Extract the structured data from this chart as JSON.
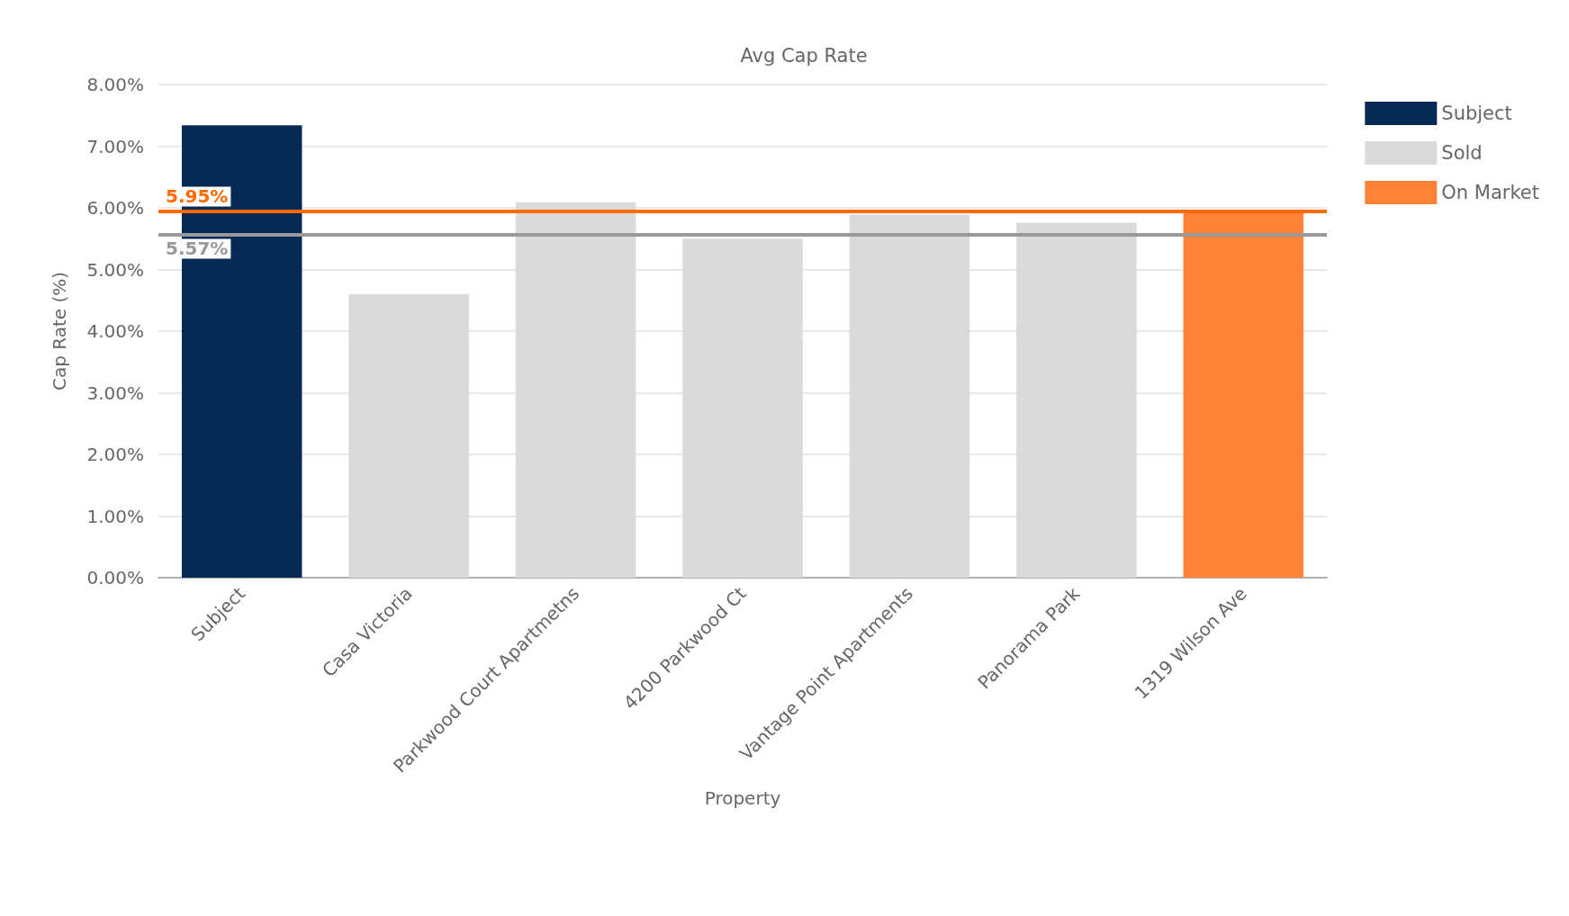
{
  "chart_data": {
    "type": "bar",
    "title": "Avg Cap Rate",
    "xlabel": "Property",
    "ylabel": "Cap Rate (%)",
    "categories": [
      "Subject",
      "Casa Victoria",
      "Parkwood Court Apartmetns",
      "4200 Parkwood Ct",
      "Vantage Point Apartments",
      "Panorama Park",
      "1319 Wilson Ave"
    ],
    "stacked": true,
    "series": [
      {
        "name": "Subject",
        "color": "#062a54",
        "values": [
          7.34,
          null,
          null,
          null,
          null,
          null,
          null
        ]
      },
      {
        "name": "Sold",
        "color": "#d9dad9",
        "values": [
          null,
          4.6,
          6.09,
          5.5,
          5.89,
          5.76,
          null
        ]
      },
      {
        "name": "On Market",
        "color": "#ff8237",
        "values": [
          null,
          null,
          null,
          null,
          null,
          null,
          5.95
        ]
      }
    ],
    "ylim": [
      0,
      8
    ],
    "yticks": [
      {
        "value": 0,
        "label": "0.00%"
      },
      {
        "value": 1,
        "label": "1.00%"
      },
      {
        "value": 2,
        "label": "2.00%"
      },
      {
        "value": 3,
        "label": "3.00%"
      },
      {
        "value": 4,
        "label": "4.00%"
      },
      {
        "value": 5,
        "label": "5.00%"
      },
      {
        "value": 6,
        "label": "6.00%"
      },
      {
        "value": 7,
        "label": "7.00%"
      },
      {
        "value": 8,
        "label": "8.00%"
      }
    ],
    "ref_lines": [
      {
        "axis": "y",
        "value": 5.95,
        "label": "5.95%",
        "color": "#ff6a00"
      },
      {
        "axis": "y",
        "value": 5.57,
        "label": "5.57%",
        "color": "#999999"
      }
    ],
    "grid": "y",
    "legend": "top right"
  }
}
